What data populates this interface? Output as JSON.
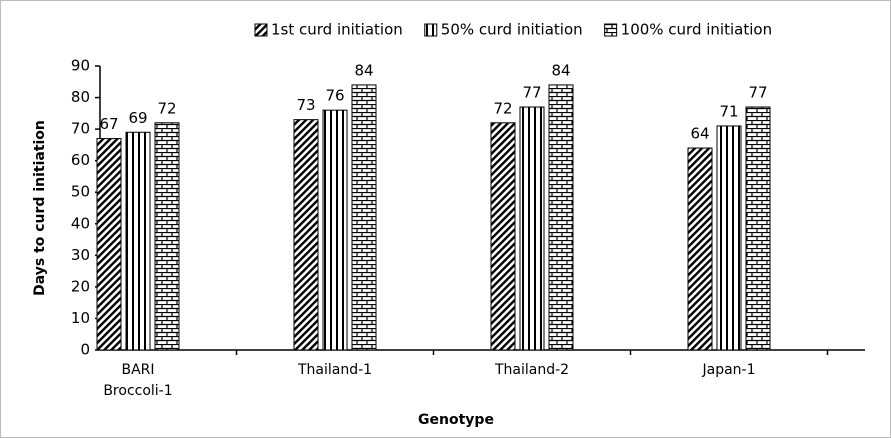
{
  "chart_data": {
    "type": "bar",
    "categories": [
      "BARI Broccoli-1",
      "Thailand-1",
      "Thailand-2",
      "Japan-1"
    ],
    "series": [
      {
        "name": "1st curd initiation",
        "color": "#000000",
        "pattern": "diagonal",
        "values": [
          67,
          73,
          72,
          64
        ]
      },
      {
        "name": "50% curd initiation",
        "color": "#000000",
        "pattern": "vertical",
        "values": [
          69,
          76,
          77,
          71
        ]
      },
      {
        "name": "100% curd initiation",
        "color": "#000000",
        "pattern": "brick",
        "values": [
          72,
          84,
          84,
          77
        ]
      }
    ],
    "xlabel": "Genotype",
    "ylabel": "Days to curd initiation",
    "ylim": [
      0,
      90
    ],
    "yticks": [
      0,
      10,
      20,
      30,
      40,
      50,
      60,
      70,
      80,
      90
    ],
    "legend": "top",
    "grid": false
  }
}
